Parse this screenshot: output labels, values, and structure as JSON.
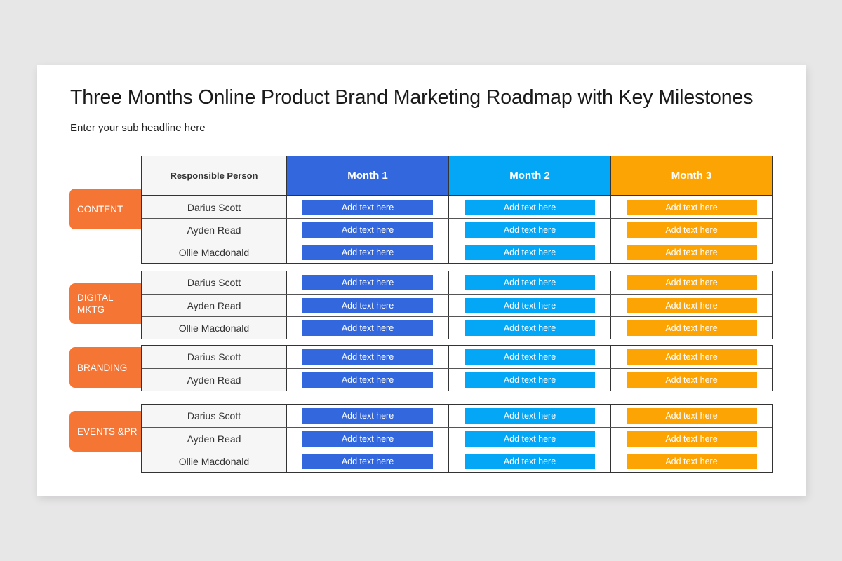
{
  "title": "Three Months Online Product Brand Marketing Roadmap with Key Milestones",
  "subtitle": "Enter your sub headline here",
  "colors": {
    "month1": "#3367dd",
    "month2": "#04a7f6",
    "month3": "#fda405",
    "category": "#f57535"
  },
  "header": {
    "person": "Responsible Person",
    "months": [
      "Month 1",
      "Month 2",
      "Month 3"
    ]
  },
  "cell_text": "Add text here",
  "groups": [
    {
      "label": "CONTENT",
      "people": [
        "Darius Scott",
        "Ayden Read",
        "Ollie Macdonald"
      ]
    },
    {
      "label": "DIGITAL MKTG",
      "people": [
        "Darius Scott",
        "Ayden Read",
        "Ollie Macdonald"
      ]
    },
    {
      "label": "BRANDING",
      "people": [
        "Darius Scott",
        "Ayden Read"
      ]
    },
    {
      "label": "EVENTS &PR",
      "people": [
        "Darius Scott",
        "Ayden Read",
        "Ollie Macdonald"
      ]
    }
  ]
}
